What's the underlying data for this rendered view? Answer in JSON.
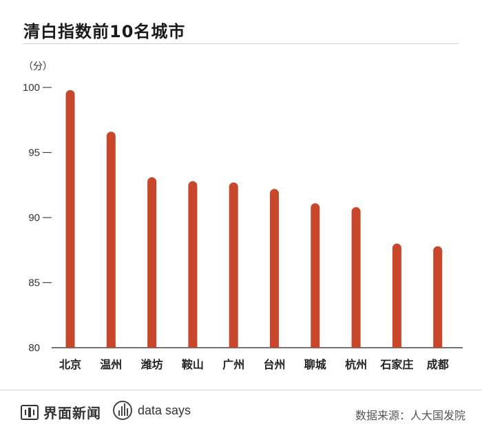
{
  "title": "清白指数前10名城市",
  "unit_label": "（分）",
  "chart_data": {
    "type": "bar",
    "title": "清白指数前10名城市",
    "ylabel": "（分）",
    "xlabel": "",
    "ylim": [
      80,
      100
    ],
    "yticks": [
      80,
      85,
      90,
      95,
      100
    ],
    "categories": [
      "北京",
      "温州",
      "潍坊",
      "鞍山",
      "广州",
      "台州",
      "聊城",
      "杭州",
      "石家庄",
      "成都"
    ],
    "values": [
      99.8,
      96.6,
      93.1,
      92.8,
      92.7,
      92.2,
      91.1,
      90.8,
      88.0,
      87.8
    ],
    "bar_color": "#c8472b",
    "grid": false
  },
  "footer": {
    "brand_name": "界面新闻",
    "brand_icon": "jiemian-logo-icon",
    "partner_name": "data says",
    "partner_icon": "data-says-logo-icon",
    "source": "数据来源：人大国发院"
  }
}
